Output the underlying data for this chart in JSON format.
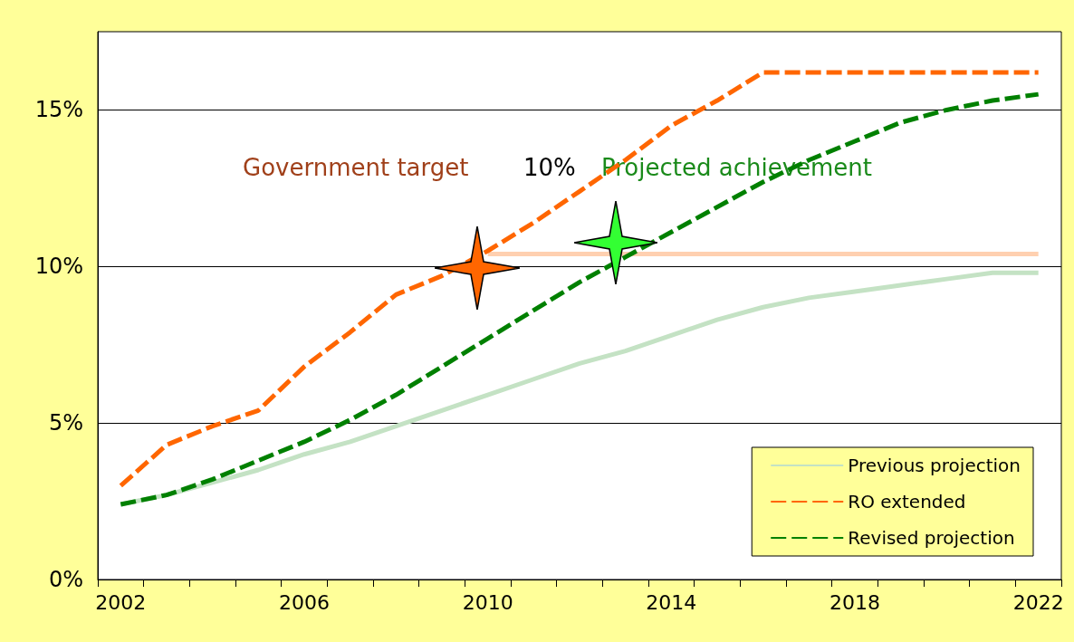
{
  "chart_data": {
    "type": "line",
    "categories": [
      "2002",
      null,
      null,
      null,
      "2006",
      null,
      null,
      null,
      "2010",
      null,
      null,
      null,
      "2014",
      null,
      null,
      null,
      "2018",
      null,
      null,
      null,
      "2022"
    ],
    "series": [
      {
        "name": "Previous projection",
        "color": "#c4e2c4",
        "line_style": "solid",
        "values": [
          2.4,
          2.7,
          3.1,
          3.5,
          4.0,
          4.4,
          4.9,
          5.4,
          5.9,
          6.4,
          6.9,
          7.3,
          7.8,
          8.3,
          8.7,
          9.0,
          9.2,
          9.4,
          9.6,
          9.8,
          9.8
        ]
      },
      {
        "name": "RO extended",
        "color": "#ff6600",
        "line_style": "dashed",
        "values": [
          3.0,
          4.3,
          4.9,
          5.4,
          6.8,
          7.9,
          9.1,
          9.7,
          10.5,
          11.4,
          12.4,
          13.4,
          14.5,
          15.3,
          16.2,
          16.2,
          16.2,
          16.2,
          16.2,
          16.2,
          16.2
        ]
      },
      {
        "name": "Revised projection",
        "color": "#008000",
        "line_style": "dashed",
        "values": [
          2.4,
          2.7,
          3.2,
          3.8,
          4.4,
          5.1,
          5.9,
          6.8,
          7.7,
          8.6,
          9.5,
          10.3,
          11.1,
          11.9,
          12.7,
          13.4,
          14.0,
          14.6,
          15.0,
          15.3,
          15.5
        ]
      },
      {
        "color": "#ffd0b0",
        "line_style": "solid",
        "values": [
          null,
          null,
          null,
          null,
          null,
          null,
          null,
          null,
          10.4,
          10.4,
          10.4,
          10.4,
          10.4,
          10.4,
          10.4,
          10.4,
          10.4,
          10.4,
          10.4,
          10.4,
          10.4
        ]
      }
    ],
    "ylim": [
      0,
      17.5
    ],
    "yticks": [
      {
        "value": 0,
        "label": "0%"
      },
      {
        "value": 5,
        "label": "5%"
      },
      {
        "value": 10,
        "label": "10%"
      },
      {
        "value": 15,
        "label": "15%"
      }
    ],
    "grid": "y",
    "legend": "bottom right",
    "marker": "none",
    "annotations": [
      "Government target",
      "10%",
      "Projected achievement"
    ]
  }
}
